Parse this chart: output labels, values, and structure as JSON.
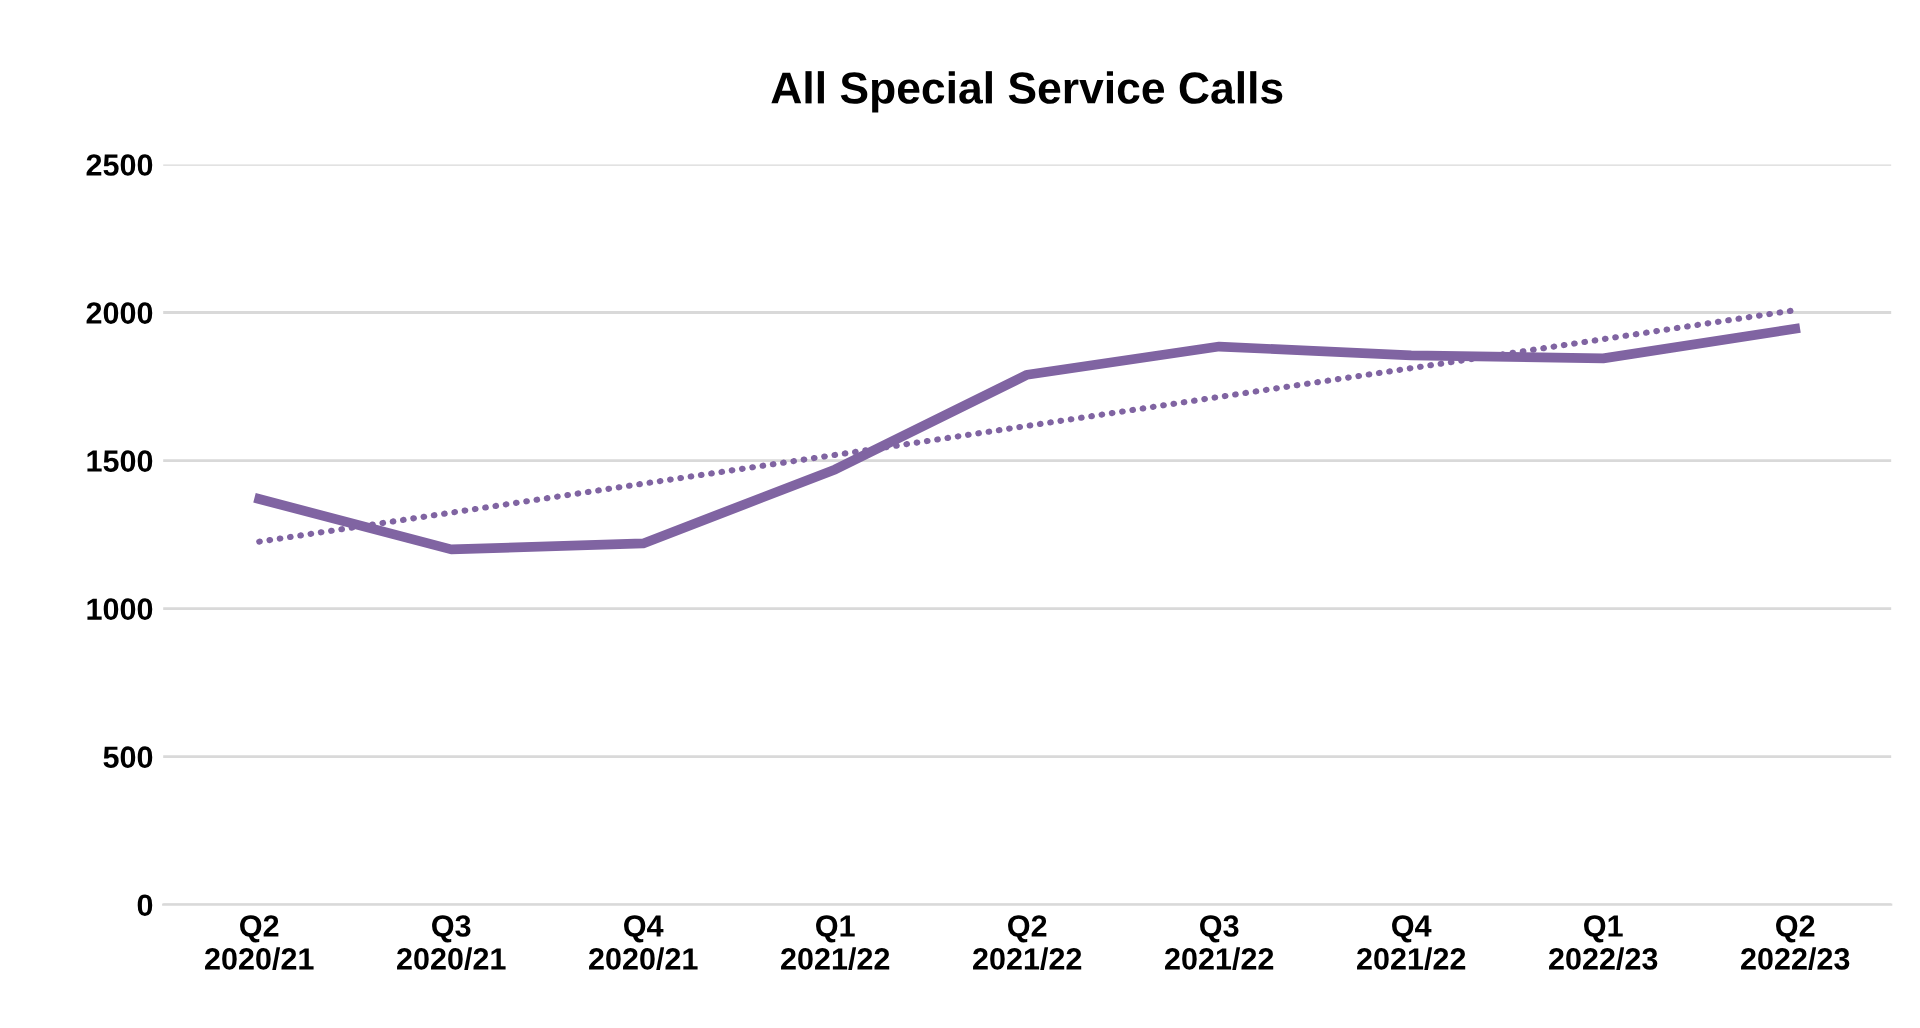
{
  "chart_data": {
    "type": "line",
    "title": "All Special Service Calls",
    "categories": [
      "Q2\n2020/21",
      "Q3\n2020/21",
      "Q4\n2020/21",
      "Q1\n2021/22",
      "Q2\n2021/22",
      "Q3\n2021/22",
      "Q4\n2021/22",
      "Q1\n2022/23",
      "Q2\n2022/23"
    ],
    "series": [
      {
        "color": "#8064a2",
        "values": [
          1370,
          1200,
          1220,
          1470,
          1790,
          1885,
          1855,
          1845,
          1945
        ],
        "line_style": "solid"
      },
      {
        "color": "#8064a2",
        "values": [
          1226,
          1324,
          1422,
          1519,
          1617,
          1715,
          1812,
          1910,
          2008
        ],
        "line_style": "dotted"
      }
    ],
    "ylim": [
      0,
      2500
    ],
    "yticks": [
      0,
      500,
      1000,
      1500,
      2000,
      2500
    ],
    "grid": "y",
    "legend": false,
    "marker": "none"
  }
}
